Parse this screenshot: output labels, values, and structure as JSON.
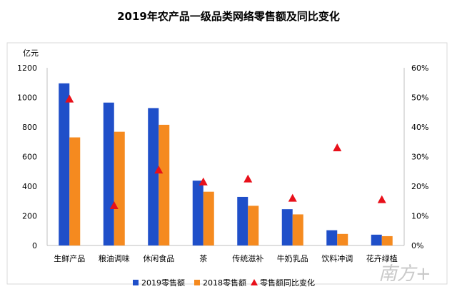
{
  "chart_data": {
    "type": "bar",
    "title": "2019年农产品一级品类网络零售额及同比变化",
    "ylabel": "亿元",
    "categories": [
      "生鲜产品",
      "粮油调味",
      "休闲食品",
      "茶",
      "传统滋补",
      "牛奶乳品",
      "饮料冲调",
      "花卉绿植"
    ],
    "series": [
      {
        "name": "2019零售额",
        "type": "bar",
        "axis": "left",
        "color": "#1f4fc9",
        "values": [
          1095,
          965,
          928,
          438,
          328,
          245,
          103,
          73
        ]
      },
      {
        "name": "2018零售额",
        "type": "bar",
        "axis": "left",
        "color": "#f58a1f",
        "values": [
          730,
          768,
          815,
          363,
          268,
          210,
          78,
          63
        ]
      },
      {
        "name": "零售额同比变化",
        "type": "marker",
        "axis": "right",
        "color": "#e8101a",
        "values": [
          0.495,
          0.135,
          0.255,
          0.215,
          0.225,
          0.16,
          0.33,
          0.155
        ]
      }
    ],
    "ylim": [
      0,
      1200
    ],
    "yticks": [
      0,
      200,
      400,
      600,
      800,
      1000,
      1200
    ],
    "y2lim": [
      0,
      0.6
    ],
    "y2ticks": [
      "0%",
      "10%",
      "20%",
      "30%",
      "40%",
      "50%",
      "60%"
    ],
    "grid": false,
    "legend_position": "bottom"
  },
  "watermark": "南方+"
}
